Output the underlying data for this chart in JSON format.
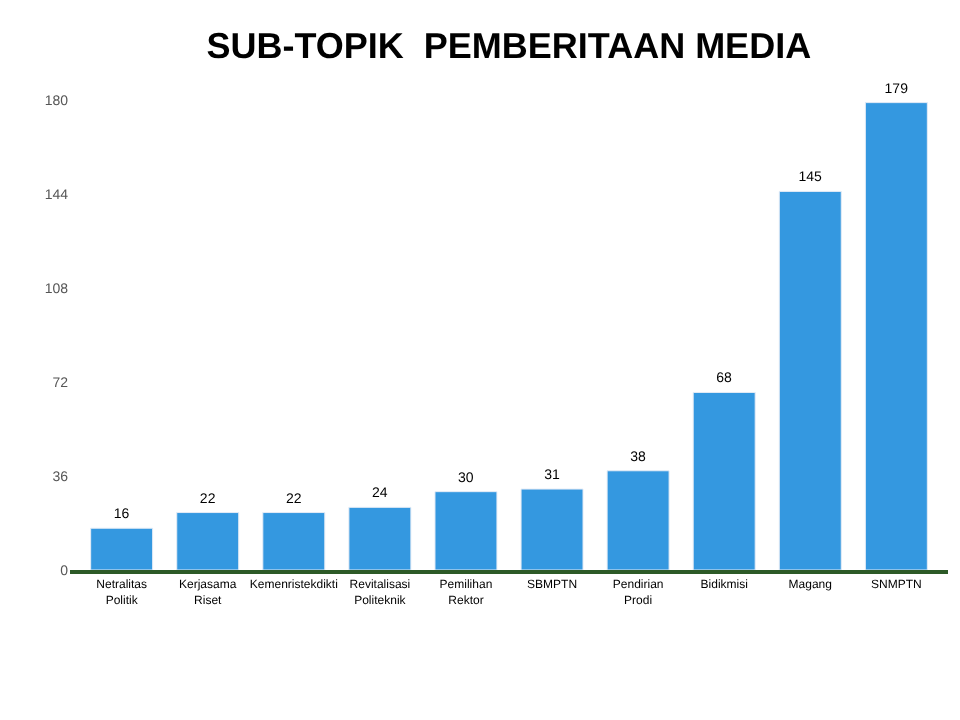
{
  "chart_data": {
    "type": "bar",
    "title": "SUB-TOPIK  PEMBERITAAN MEDIA",
    "categories": [
      "Netralitas Politik",
      "Kerjasama Riset",
      "Kemenristekdikti",
      "Revitalisasi Politeknik",
      "Pemilihan Rektor",
      "SBMPTN",
      "Pendirian Prodi",
      "Bidikmisi",
      "Magang",
      "SNMPTN"
    ],
    "values": [
      16,
      22,
      22,
      24,
      30,
      31,
      38,
      68,
      145,
      179
    ],
    "color": "#3498e0",
    "ylim": [
      0,
      180
    ],
    "yticks": [
      0,
      36,
      72,
      108,
      144,
      180
    ],
    "data_labels": true
  }
}
